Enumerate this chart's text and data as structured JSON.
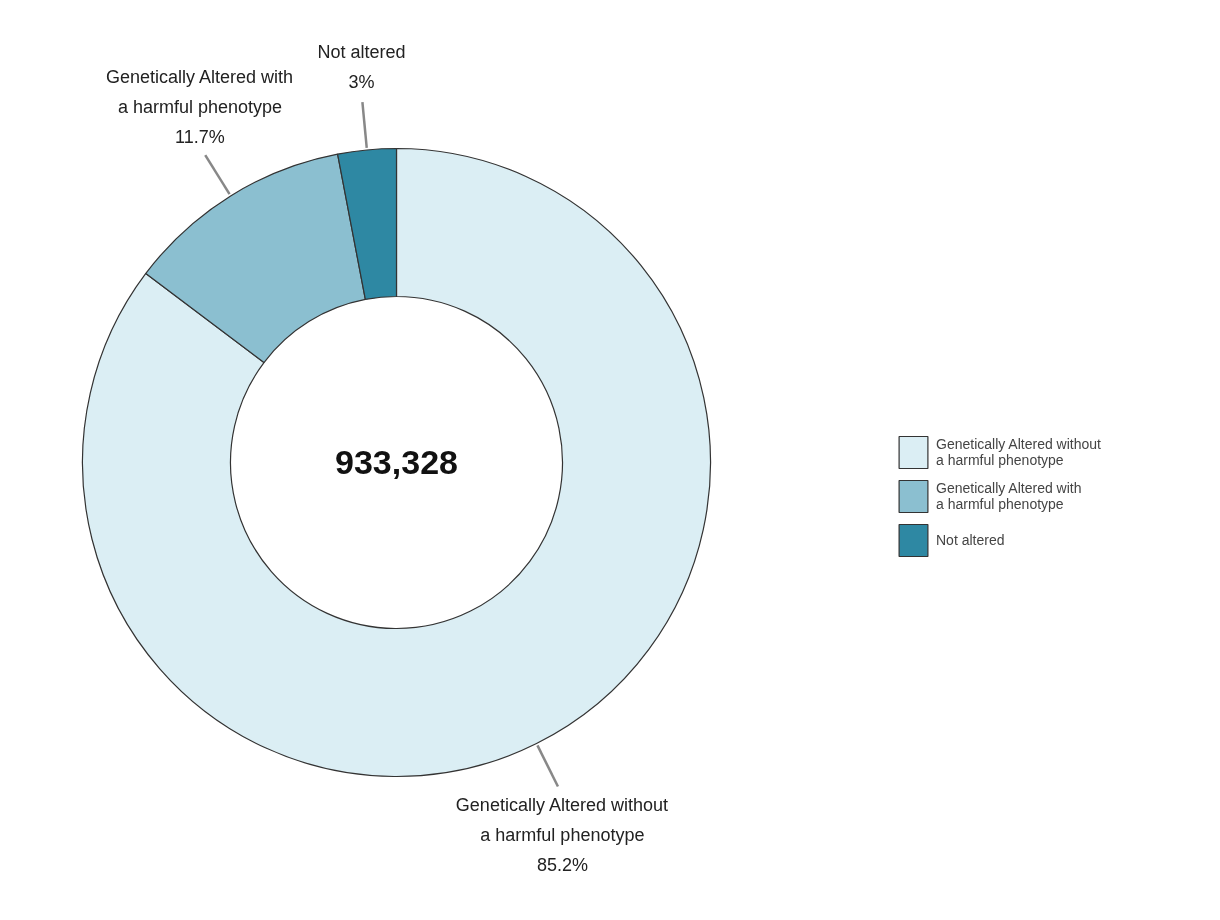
{
  "chart_data": {
    "type": "donut",
    "categories": [
      "Genetically Altered without a harmful phenotype",
      "Genetically Altered with a harmful phenotype",
      "Not altered"
    ],
    "values": [
      85.2,
      11.7,
      3
    ],
    "value_labels": [
      "85.2%",
      "11.7%",
      "3%"
    ],
    "colors": [
      "#dbeef4",
      "#8bbfd0",
      "#2e88a3"
    ],
    "annotations": [
      "933,328"
    ],
    "legend": "right"
  }
}
